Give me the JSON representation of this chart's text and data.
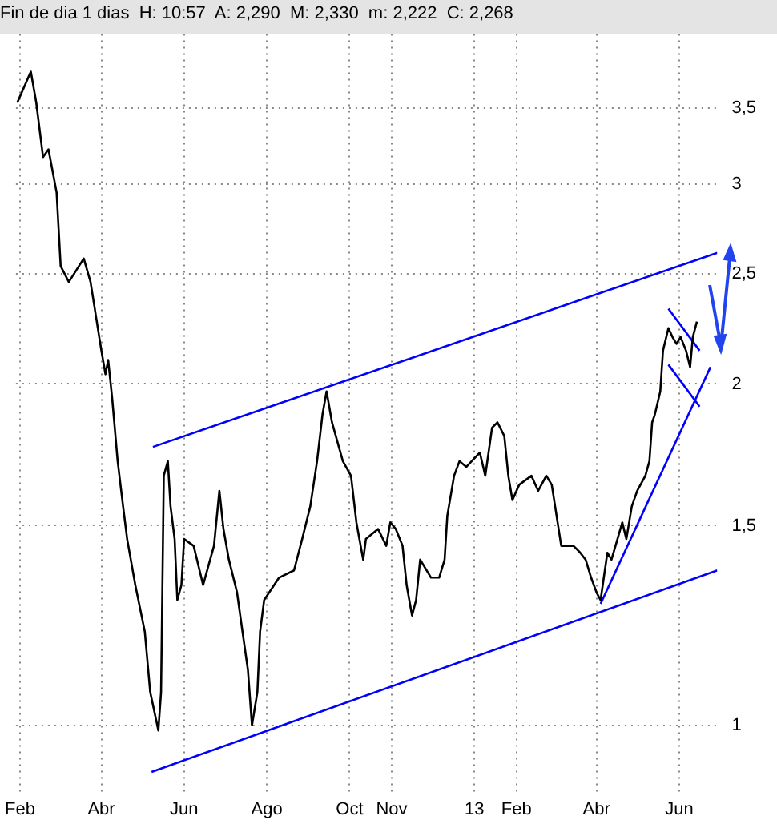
{
  "chart_data": {
    "type": "line",
    "title": "Fin de dia 1 dias  H: 10:57  A: 2,290  M: 2,330  m: 2,222  C: 2,268",
    "xlim": [
      "2012-01-29",
      "2013-06-29"
    ],
    "ylim": [
      0.87,
      4.07
    ],
    "log": true,
    "grid": true,
    "legend": false,
    "marker": "none",
    "xticks": [
      {
        "value": "2012-02-01",
        "label": "Feb"
      },
      {
        "value": "2012-04-01",
        "label": "Abr"
      },
      {
        "value": "2012-06-01",
        "label": "Jun"
      },
      {
        "value": "2012-08-01",
        "label": "Ago"
      },
      {
        "value": "2012-10-01",
        "label": "Oct"
      },
      {
        "value": "2012-11-01",
        "label": "Nov"
      },
      {
        "value": "2013-01-01",
        "label": "13"
      },
      {
        "value": "2013-02-01",
        "label": "Feb"
      },
      {
        "value": "2013-04-01",
        "label": "Abr"
      },
      {
        "value": "2013-06-01",
        "label": "Jun"
      }
    ],
    "yticks": [
      1,
      {
        "value": 1.5,
        "label": "1,5"
      },
      2,
      {
        "value": 2.5,
        "label": "2,5"
      },
      3,
      {
        "value": 3.5,
        "label": "3,5"
      }
    ],
    "series": [
      {
        "color": "#000000",
        "x": [
          "2012-01-30",
          "2012-02-09",
          "2012-02-13",
          "2012-02-18",
          "2012-02-22",
          "2012-02-28",
          "2012-03-02",
          "2012-03-08",
          "2012-03-19",
          "2012-03-24",
          "2012-04-01",
          "2012-04-04",
          "2012-04-06",
          "2012-04-09",
          "2012-04-13",
          "2012-04-17",
          "2012-04-20",
          "2012-04-26",
          "2012-05-03",
          "2012-05-07",
          "2012-05-13",
          "2012-05-15",
          "2012-05-17",
          "2012-05-20",
          "2012-05-22",
          "2012-05-25",
          "2012-05-27",
          "2012-05-30",
          "2012-06-01",
          "2012-06-08",
          "2012-06-15",
          "2012-06-23",
          "2012-06-27",
          "2012-06-30",
          "2012-07-04",
          "2012-07-10",
          "2012-07-14",
          "2012-07-18",
          "2012-07-21",
          "2012-07-25",
          "2012-07-27",
          "2012-07-30",
          "2012-08-10",
          "2012-08-21",
          "2012-08-27",
          "2012-09-02",
          "2012-09-07",
          "2012-09-11",
          "2012-09-14",
          "2012-09-18",
          "2012-09-26",
          "2012-10-02",
          "2012-10-06",
          "2012-10-11",
          "2012-10-13",
          "2012-10-22",
          "2012-10-28",
          "2012-10-31",
          "2012-11-04",
          "2012-11-09",
          "2012-11-12",
          "2012-11-16",
          "2012-11-19",
          "2012-11-22",
          "2012-11-30",
          "2012-12-06",
          "2012-12-10",
          "2012-12-12",
          "2012-12-17",
          "2012-12-21",
          "2012-12-26",
          "2012-12-30",
          "2013-01-05",
          "2013-01-09",
          "2013-01-14",
          "2013-01-18",
          "2013-01-23",
          "2013-01-26",
          "2013-01-29",
          "2013-02-03",
          "2013-02-12",
          "2013-02-17",
          "2013-02-23",
          "2013-02-27",
          "2013-03-06",
          "2013-03-11",
          "2013-03-15",
          "2013-03-20",
          "2013-03-24",
          "2013-03-28",
          "2013-04-01",
          "2013-04-04",
          "2013-04-09",
          "2013-04-12",
          "2013-04-15",
          "2013-04-20",
          "2013-04-23",
          "2013-04-27",
          "2013-05-01",
          "2013-05-07",
          "2013-05-10",
          "2013-05-12",
          "2013-05-14",
          "2013-05-18",
          "2013-05-20",
          "2013-05-24",
          "2013-05-27",
          "2013-05-30",
          "2013-06-02",
          "2013-06-06",
          "2013-06-09",
          "2013-06-11",
          "2013-06-14"
        ],
        "values": [
          3.54,
          3.77,
          3.54,
          3.17,
          3.22,
          2.95,
          2.54,
          2.46,
          2.58,
          2.46,
          2.14,
          2.04,
          2.1,
          1.94,
          1.71,
          1.56,
          1.46,
          1.33,
          1.21,
          1.07,
          0.99,
          1.07,
          1.66,
          1.71,
          1.56,
          1.46,
          1.29,
          1.33,
          1.46,
          1.44,
          1.33,
          1.44,
          1.61,
          1.49,
          1.4,
          1.31,
          1.21,
          1.12,
          1.0,
          1.07,
          1.21,
          1.29,
          1.35,
          1.37,
          1.46,
          1.56,
          1.71,
          1.88,
          1.97,
          1.85,
          1.71,
          1.66,
          1.51,
          1.4,
          1.46,
          1.49,
          1.44,
          1.51,
          1.49,
          1.44,
          1.33,
          1.25,
          1.29,
          1.4,
          1.35,
          1.35,
          1.4,
          1.53,
          1.66,
          1.71,
          1.69,
          1.71,
          1.74,
          1.66,
          1.83,
          1.85,
          1.8,
          1.66,
          1.58,
          1.63,
          1.66,
          1.61,
          1.66,
          1.63,
          1.44,
          1.44,
          1.44,
          1.42,
          1.4,
          1.35,
          1.31,
          1.29,
          1.42,
          1.4,
          1.44,
          1.51,
          1.46,
          1.56,
          1.61,
          1.66,
          1.71,
          1.85,
          1.88,
          1.97,
          2.14,
          2.24,
          2.2,
          2.17,
          2.2,
          2.14,
          2.07,
          2.2,
          2.27
        ]
      },
      {
        "type": "line",
        "color": "#0000ff",
        "x": [
          "2012-05-09",
          "2013-06-29"
        ],
        "values": [
          1.76,
          2.61
        ]
      },
      {
        "type": "line",
        "color": "#0000ff",
        "x": [
          "2012-05-08",
          "2013-06-29"
        ],
        "values": [
          0.91,
          1.37
        ]
      },
      {
        "type": "line",
        "color": "#0000ff",
        "x": [
          "2013-04-04",
          "2013-06-24"
        ],
        "values": [
          1.28,
          2.07
        ]
      },
      {
        "type": "line",
        "color": "#0000ff",
        "x": [
          "2013-05-24",
          "2013-06-16"
        ],
        "values": [
          2.33,
          2.14
        ]
      },
      {
        "type": "line",
        "color": "#0000ff",
        "x": [
          "2013-05-24",
          "2013-06-16"
        ],
        "values": [
          2.08,
          1.91
        ]
      }
    ]
  }
}
